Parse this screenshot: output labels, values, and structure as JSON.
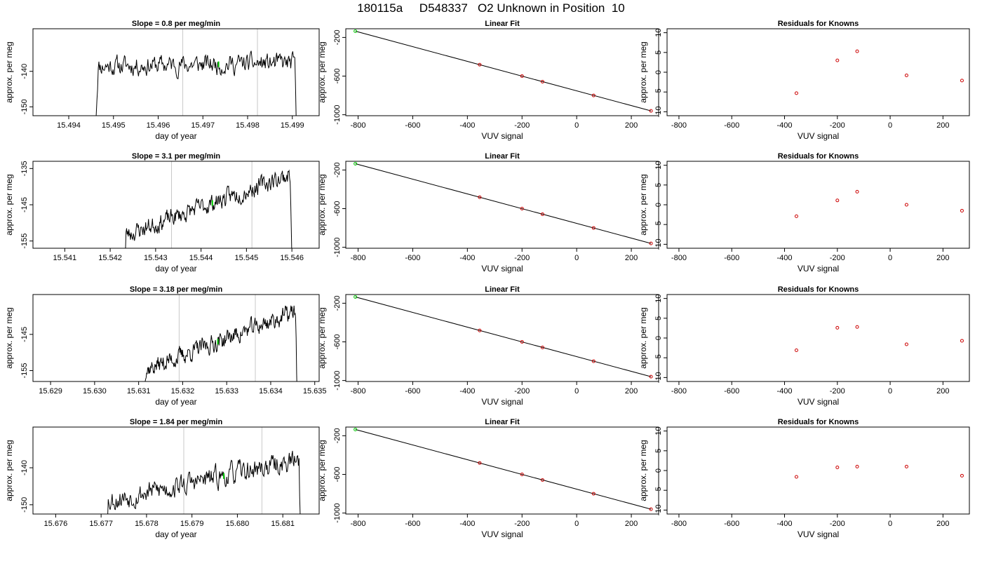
{
  "figure_title": "180115a     D548337   O2 Unknown in Position  10",
  "colors": {
    "trace": "#000000",
    "highlight": "#00cc00",
    "residual": "#cc0000",
    "guide": "#c8c8c8",
    "fit": "#000000"
  },
  "chart_data": [
    {
      "type": "line",
      "row": 0,
      "title": "Slope =  0.8  per meg/min",
      "xlabel": "day of year",
      "ylabel": "approx. per meg",
      "xlim": [
        15.4932,
        15.4996
      ],
      "ylim": [
        -152.5,
        -128
      ],
      "xticks": [
        "15.494",
        "15.495",
        "15.496",
        "15.497",
        "15.498",
        "15.499"
      ],
      "yticks": [
        "-140",
        "-150"
      ],
      "trace_start": 15.4946,
      "trace_end": 15.4991,
      "trace_base": -138.5,
      "trace_slope_per_day": 180,
      "trace_noise": 2.2,
      "seed": 11,
      "vlines": [
        15.49655,
        15.49822
      ],
      "highlight_x": 15.49735
    },
    {
      "type": "scatter",
      "row": 0,
      "title": "Linear Fit",
      "xlabel": "VUV signal",
      "ylabel": "approx. per meg",
      "xlim": [
        -845,
        300
      ],
      "ylim": [
        -1010,
        -110
      ],
      "xticks": [
        "-800",
        "-600",
        "-400",
        "-200",
        "0",
        "200"
      ],
      "yticks": [
        "-200",
        "-600",
        "-1000"
      ],
      "points": [
        [
          -810,
          -135
        ],
        [
          -355,
          -482
        ],
        [
          -200,
          -600
        ],
        [
          -125,
          -658
        ],
        [
          62,
          -800
        ],
        [
          272,
          -960
        ]
      ],
      "highlight_index": 0,
      "fit_line": [
        [
          -810,
          -135
        ],
        [
          272,
          -960
        ]
      ]
    },
    {
      "type": "scatter",
      "row": 0,
      "title": "Residuals for Knowns",
      "xlabel": "VUV signal",
      "ylabel": "approx. per meg",
      "xlim": [
        -845,
        300
      ],
      "ylim": [
        -11,
        11
      ],
      "xticks": [
        "-800",
        "-600",
        "-400",
        "-200",
        "0",
        "200"
      ],
      "yticks": [
        "10",
        "5",
        "0",
        "-5",
        "-10"
      ],
      "points": [
        [
          -355,
          -5.3
        ],
        [
          -200,
          3.0
        ],
        [
          -125,
          5.3
        ],
        [
          62,
          -0.8
        ],
        [
          272,
          -2.1
        ]
      ]
    },
    {
      "type": "line",
      "row": 1,
      "title": "Slope =  3.1  per meg/min",
      "xlabel": "day of year",
      "ylabel": "approx. per meg",
      "xlim": [
        15.5403,
        15.5466
      ],
      "ylim": [
        -157,
        -133
      ],
      "xticks": [
        "15.541",
        "15.542",
        "15.543",
        "15.544",
        "15.545",
        "15.546"
      ],
      "yticks": [
        "-135",
        "-145",
        "-155"
      ],
      "trace_start": 15.5423,
      "trace_end": 15.546,
      "trace_base": -153.5,
      "trace_slope_per_day": 4600,
      "trace_noise": 2.0,
      "seed": 23,
      "vlines": [
        15.54335,
        15.54512
      ],
      "highlight_x": 15.54425
    },
    {
      "type": "scatter",
      "row": 1,
      "title": "Linear Fit",
      "xlabel": "VUV signal",
      "ylabel": "approx. per meg",
      "xlim": [
        -845,
        300
      ],
      "ylim": [
        -1010,
        -110
      ],
      "xticks": [
        "-800",
        "-600",
        "-400",
        "-200",
        "0",
        "200"
      ],
      "yticks": [
        "-200",
        "-600",
        "-1000"
      ],
      "points": [
        [
          -810,
          -135
        ],
        [
          -355,
          -482
        ],
        [
          -200,
          -600
        ],
        [
          -125,
          -658
        ],
        [
          62,
          -800
        ],
        [
          272,
          -960
        ]
      ],
      "highlight_index": 0,
      "fit_line": [
        [
          -810,
          -135
        ],
        [
          272,
          -960
        ]
      ]
    },
    {
      "type": "scatter",
      "row": 1,
      "title": "Residuals for Knowns",
      "xlabel": "VUV signal",
      "ylabel": "approx. per meg",
      "xlim": [
        -845,
        300
      ],
      "ylim": [
        -11,
        11
      ],
      "xticks": [
        "-800",
        "-600",
        "-400",
        "-200",
        "0",
        "200"
      ],
      "yticks": [
        "10",
        "5",
        "0",
        "-5",
        "-10"
      ],
      "points": [
        [
          -355,
          -2.9
        ],
        [
          -200,
          1.1
        ],
        [
          -125,
          3.3
        ],
        [
          62,
          0.0
        ],
        [
          272,
          -1.5
        ]
      ]
    },
    {
      "type": "line",
      "row": 2,
      "title": "Slope =  3.18  per meg/min",
      "xlabel": "day of year",
      "ylabel": "approx. per meg",
      "xlim": [
        15.6286,
        15.6351
      ],
      "ylim": [
        -158,
        -134
      ],
      "xticks": [
        "15.629",
        "15.630",
        "15.631",
        "15.632",
        "15.633",
        "15.634",
        "15.635"
      ],
      "yticks": [
        "-145",
        "-155"
      ],
      "trace_start": 15.6311,
      "trace_end": 15.6346,
      "trace_base": -155,
      "trace_slope_per_day": 4700,
      "trace_noise": 2.0,
      "seed": 37,
      "vlines": [
        15.63192,
        15.63365
      ],
      "highlight_x": 15.6328
    },
    {
      "type": "scatter",
      "row": 2,
      "title": "Linear Fit",
      "xlabel": "VUV signal",
      "ylabel": "approx. per meg",
      "xlim": [
        -845,
        300
      ],
      "ylim": [
        -1010,
        -110
      ],
      "xticks": [
        "-800",
        "-600",
        "-400",
        "-200",
        "0",
        "200"
      ],
      "yticks": [
        "-200",
        "-600",
        "-1000"
      ],
      "points": [
        [
          -810,
          -135
        ],
        [
          -355,
          -482
        ],
        [
          -200,
          -600
        ],
        [
          -125,
          -658
        ],
        [
          62,
          -800
        ],
        [
          272,
          -960
        ]
      ],
      "highlight_index": 0,
      "fit_line": [
        [
          -810,
          -135
        ],
        [
          272,
          -960
        ]
      ]
    },
    {
      "type": "scatter",
      "row": 2,
      "title": "Residuals for Knowns",
      "xlabel": "VUV signal",
      "ylabel": "approx. per meg",
      "xlim": [
        -845,
        300
      ],
      "ylim": [
        -11,
        11
      ],
      "xticks": [
        "-800",
        "-600",
        "-400",
        "-200",
        "0",
        "200"
      ],
      "yticks": [
        "10",
        "5",
        "0",
        "-5",
        "-10"
      ],
      "points": [
        [
          -355,
          -3.1
        ],
        [
          -200,
          2.6
        ],
        [
          -125,
          2.8
        ],
        [
          62,
          -1.6
        ],
        [
          272,
          -0.7
        ]
      ]
    },
    {
      "type": "line",
      "row": 3,
      "title": "Slope =  1.84  per meg/min",
      "xlabel": "day of year",
      "ylabel": "approx. per meg",
      "xlim": [
        15.6755,
        15.6818
      ],
      "ylim": [
        -152.5,
        -129
      ],
      "xticks": [
        "15.676",
        "15.677",
        "15.678",
        "15.679",
        "15.680",
        "15.681"
      ],
      "yticks": [
        "-140",
        "-150"
      ],
      "trace_start": 15.6771,
      "trace_end": 15.6814,
      "trace_base": -149,
      "trace_slope_per_day": 2600,
      "trace_noise": 2.4,
      "seed": 53,
      "vlines": [
        15.67882,
        15.68054
      ],
      "highlight_x": 15.6797
    },
    {
      "type": "scatter",
      "row": 3,
      "title": "Linear Fit",
      "xlabel": "VUV signal",
      "ylabel": "approx. per meg",
      "xlim": [
        -845,
        300
      ],
      "ylim": [
        -1010,
        -110
      ],
      "xticks": [
        "-800",
        "-600",
        "-400",
        "-200",
        "0",
        "200"
      ],
      "yticks": [
        "-200",
        "-600",
        "-1000"
      ],
      "points": [
        [
          -810,
          -135
        ],
        [
          -355,
          -482
        ],
        [
          -200,
          -600
        ],
        [
          -125,
          -658
        ],
        [
          62,
          -800
        ],
        [
          272,
          -960
        ]
      ],
      "highlight_index": 0,
      "fit_line": [
        [
          -810,
          -135
        ],
        [
          272,
          -960
        ]
      ]
    },
    {
      "type": "scatter",
      "row": 3,
      "title": "Residuals for Knowns",
      "xlabel": "VUV signal",
      "ylabel": "approx. per meg",
      "xlim": [
        -845,
        300
      ],
      "ylim": [
        -11,
        11
      ],
      "xticks": [
        "-800",
        "-600",
        "-400",
        "-200",
        "0",
        "200"
      ],
      "yticks": [
        "10",
        "5",
        "0",
        "-5",
        "-10"
      ],
      "points": [
        [
          -355,
          -1.6
        ],
        [
          -200,
          0.8
        ],
        [
          -125,
          1.0
        ],
        [
          62,
          1.0
        ],
        [
          272,
          -1.3
        ]
      ]
    }
  ]
}
